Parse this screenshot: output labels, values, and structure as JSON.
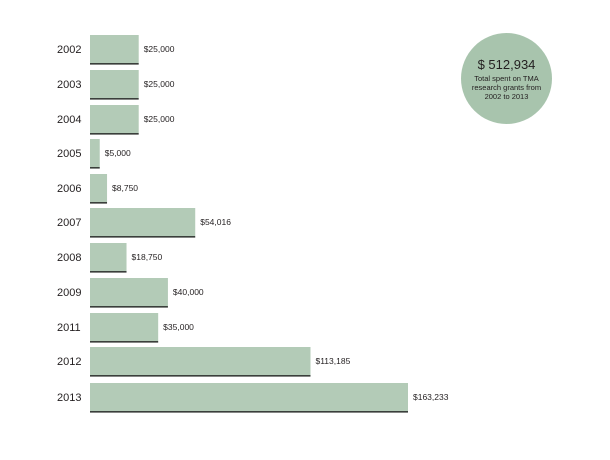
{
  "chart_data": {
    "type": "bar",
    "orientation": "horizontal",
    "title": "",
    "xlabel": "",
    "ylabel": "",
    "categories": [
      "2002",
      "2003",
      "2004",
      "2005",
      "2006",
      "2007",
      "2008",
      "2009",
      "2011",
      "2012",
      "2013"
    ],
    "values": [
      25000,
      25000,
      25000,
      5000,
      8750,
      54016,
      18750,
      40000,
      35000,
      113185,
      163233
    ],
    "value_labels": [
      "$25,000",
      "$25,000",
      "$25,000",
      "$5,000",
      "$8,750",
      "$54,016",
      "$18,750",
      "$40,000",
      "$35,000",
      "$113,185",
      "$163,233"
    ],
    "grid": false,
    "legend": "none",
    "bar_color": "#b3cbb7",
    "bar_shadow_color": "#3a3f3b"
  },
  "summary": {
    "amount": "$ 512,934",
    "caption": "Total spent on TMA research grants from 2002 to 2013",
    "circle_color": "#a8c4ad"
  }
}
